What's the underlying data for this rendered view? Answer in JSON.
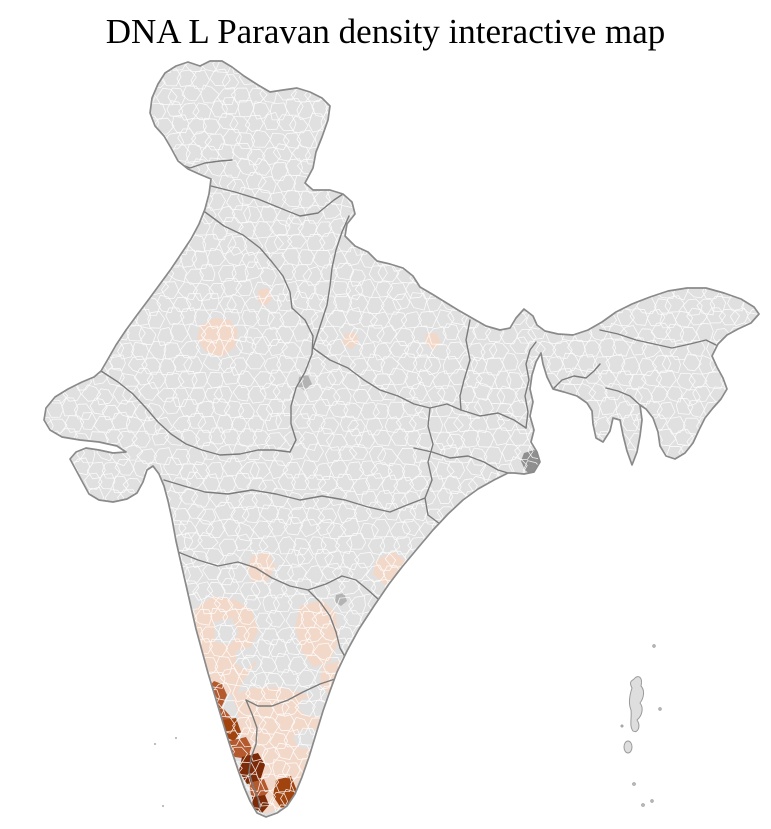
{
  "title": "DNA L Paravan density interactive map",
  "map": {
    "country": "India",
    "palette": {
      "background": "#ffffff",
      "base_district": "#e0e0e0",
      "district_border": "#ffffff",
      "state_border": "#7b7b7b",
      "country_border": "#8a8a8a",
      "density_low": "#f2d8c9",
      "density_medium": "#b45a2e",
      "density_medium_high": "#a0430f",
      "density_high": "#7c2a08",
      "urban_shade": "#b3b3b3",
      "delta_shade": "#8f8f8f",
      "island_fill": "#dedede",
      "island_border": "#9a9a9a"
    },
    "patches": [
      {
        "id": "patch-01",
        "level": "low"
      },
      {
        "id": "patch-02",
        "level": "low"
      },
      {
        "id": "patch-03",
        "level": "low"
      },
      {
        "id": "patch-04",
        "level": "low"
      },
      {
        "id": "patch-05",
        "level": "low"
      },
      {
        "id": "patch-06",
        "level": "low"
      },
      {
        "id": "patch-07",
        "level": "low"
      },
      {
        "id": "patch-08",
        "level": "low"
      },
      {
        "id": "patch-09",
        "level": "low"
      },
      {
        "id": "patch-10",
        "level": "low"
      },
      {
        "id": "patch-11",
        "level": "none"
      },
      {
        "id": "patch-12",
        "level": "none"
      },
      {
        "id": "patch-13",
        "level": "none"
      },
      {
        "id": "patch-14",
        "level": "none"
      },
      {
        "id": "patch-15",
        "level": "medium"
      },
      {
        "id": "patch-16",
        "level": "medium"
      },
      {
        "id": "patch-17",
        "level": "medium_high"
      },
      {
        "id": "patch-18",
        "level": "medium"
      },
      {
        "id": "patch-19",
        "level": "high"
      },
      {
        "id": "patch-20",
        "level": "medium"
      },
      {
        "id": "patch-21",
        "level": "high"
      },
      {
        "id": "patch-22",
        "level": "medium_high"
      },
      {
        "id": "patch-23",
        "level": "medium"
      },
      {
        "id": "patch-24",
        "level": "urban"
      },
      {
        "id": "patch-25",
        "level": "urban"
      },
      {
        "id": "patch-26",
        "level": "delta"
      }
    ]
  }
}
